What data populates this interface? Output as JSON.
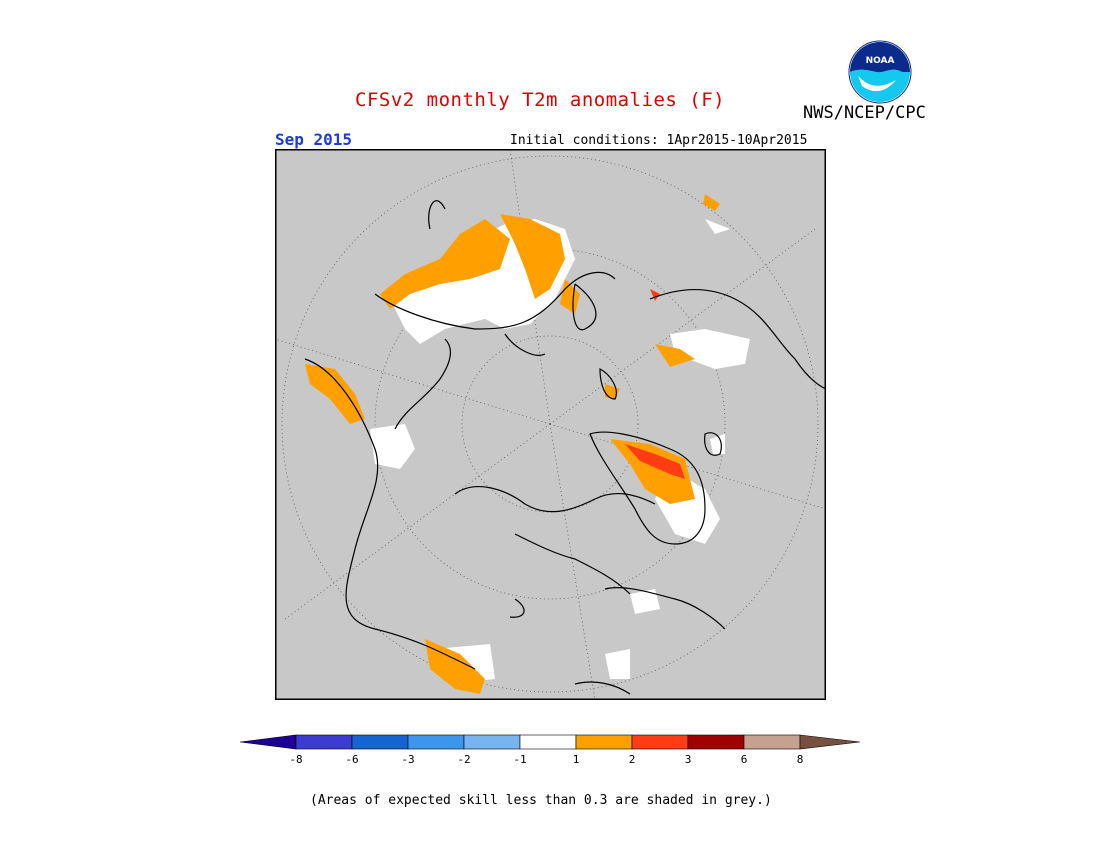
{
  "header": {
    "title": "CFSv2 monthly T2m anomalies (F)",
    "agency": "NWS/NCEP/CPC",
    "logo_text": "NOAA",
    "valid_month": "Sep 2015",
    "initial_conditions": "Initial conditions: 1Apr2015-10Apr2015"
  },
  "map": {
    "projection": "north polar stereographic",
    "background_color": "#c8c8c8",
    "land_outline_color": "#000000"
  },
  "legend": {
    "colors": [
      "#1f0096",
      "#3c3cd2",
      "#1464d2",
      "#3c96f0",
      "#78b4f0",
      "#ffffff",
      "#ffa000",
      "#ff3c14",
      "#a00000",
      "#c8a090",
      "#785040"
    ],
    "tick_labels": [
      "-8",
      "-6",
      "-3",
      "-2",
      "-1",
      "1",
      "2",
      "3",
      "6",
      "8"
    ],
    "footnote": "(Areas of expected skill less than 0.3 are shaded in grey.)"
  }
}
